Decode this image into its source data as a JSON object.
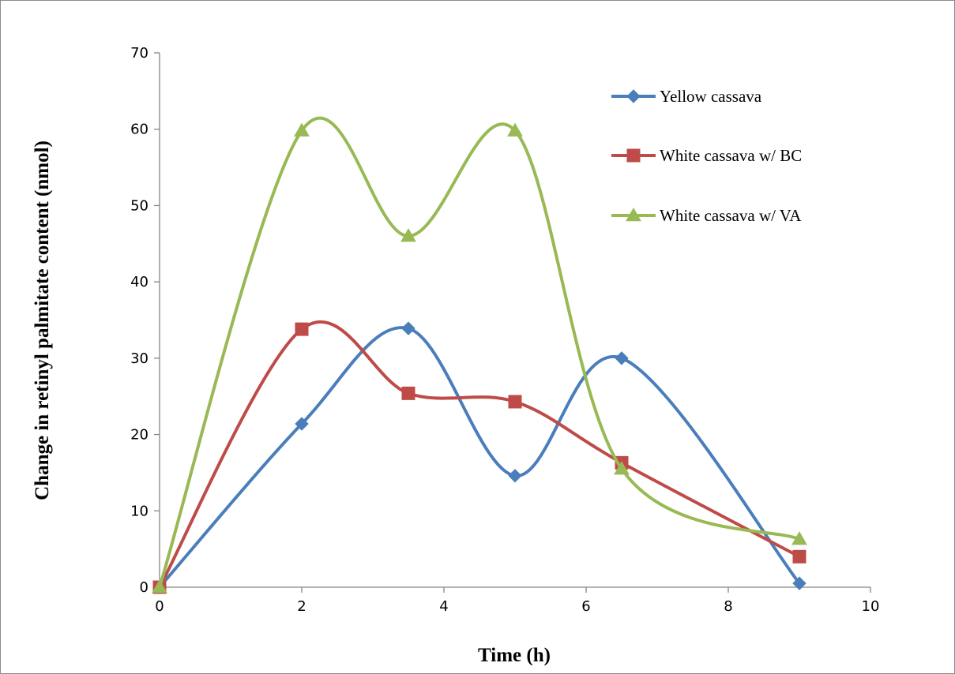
{
  "chart_data": {
    "type": "line",
    "smooth": true,
    "title": "",
    "xlabel": "Time (h)",
    "ylabel": "Change in retinyl palmitate content (nmol)",
    "xlim": [
      0,
      10
    ],
    "ylim": [
      0,
      70
    ],
    "x_ticks": [
      "0",
      "2",
      "4",
      "6",
      "8",
      "10"
    ],
    "y_ticks": [
      "0",
      "10",
      "20",
      "30",
      "40",
      "50",
      "60",
      "70"
    ],
    "grid": false,
    "legend_position": "top-right",
    "series": [
      {
        "name": "Yellow cassava",
        "color": "#4a7ebb",
        "marker": "diamond",
        "x": [
          0,
          2,
          3.5,
          5,
          6.5,
          9
        ],
        "y": [
          0,
          21.4,
          33.9,
          14.6,
          30.0,
          0.5
        ]
      },
      {
        "name": "White cassava w/ BC",
        "color": "#be4b48",
        "marker": "square",
        "x": [
          0,
          2,
          3.5,
          5,
          6.5,
          9
        ],
        "y": [
          0,
          33.8,
          25.4,
          24.3,
          16.3,
          4.0
        ]
      },
      {
        "name": "White cassava w/ VA",
        "color": "#98b954",
        "marker": "triangle",
        "x": [
          0,
          2,
          3.5,
          5,
          6.5,
          9
        ],
        "y": [
          0,
          59.8,
          46.0,
          59.8,
          15.5,
          6.3
        ]
      }
    ]
  }
}
